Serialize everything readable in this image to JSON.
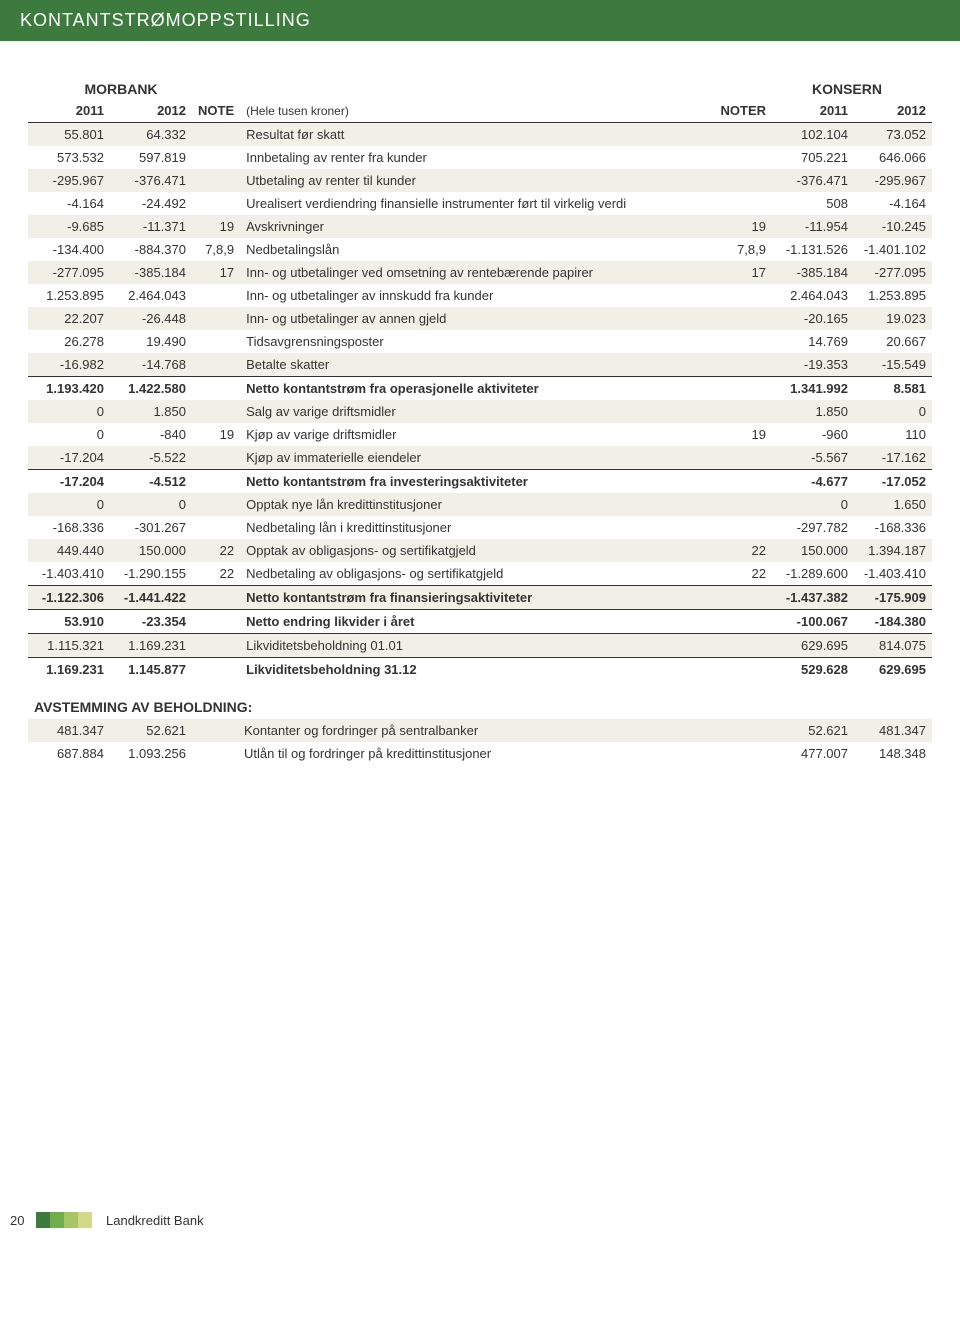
{
  "header": {
    "title": "KONTANTSTRØMOPPSTILLING"
  },
  "group_labels": {
    "left": "MORBANK",
    "right": "KONSERN"
  },
  "columns": {
    "m2011": "2011",
    "m2012": "2012",
    "mnote": "NOTE",
    "desc": "(Hele tusen kroner)",
    "noter": "NOTER",
    "k2011": "2011",
    "k2012": "2012"
  },
  "rows": [
    {
      "m2011": "55.801",
      "m2012": "64.332",
      "mnote": "",
      "desc": "Resultat før skatt",
      "noter": "",
      "k2011": "102.104",
      "k2012": "73.052",
      "alt": true
    },
    {
      "m2011": "573.532",
      "m2012": "597.819",
      "mnote": "",
      "desc": "Innbetaling av renter fra kunder",
      "noter": "",
      "k2011": "705.221",
      "k2012": "646.066"
    },
    {
      "m2011": "-295.967",
      "m2012": "-376.471",
      "mnote": "",
      "desc": "Utbetaling av renter til kunder",
      "noter": "",
      "k2011": "-376.471",
      "k2012": "-295.967",
      "alt": true
    },
    {
      "m2011": "-4.164",
      "m2012": "-24.492",
      "mnote": "",
      "desc": "Urealisert verdiendring finansielle instrumenter ført til virkelig verdi",
      "noter": "",
      "k2011": "508",
      "k2012": "-4.164"
    },
    {
      "m2011": "-9.685",
      "m2012": "-11.371",
      "mnote": "19",
      "desc": "Avskrivninger",
      "noter": "19",
      "k2011": "-11.954",
      "k2012": "-10.245",
      "alt": true
    },
    {
      "m2011": "-134.400",
      "m2012": "-884.370",
      "mnote": "7,8,9",
      "desc": "Nedbetalingslån",
      "noter": "7,8,9",
      "k2011": "-1.131.526",
      "k2012": "-1.401.102"
    },
    {
      "m2011": "-277.095",
      "m2012": "-385.184",
      "mnote": "17",
      "desc": "Inn- og utbetalinger ved omsetning av rentebærende papirer",
      "noter": "17",
      "k2011": "-385.184",
      "k2012": "-277.095",
      "alt": true
    },
    {
      "m2011": "1.253.895",
      "m2012": "2.464.043",
      "mnote": "",
      "desc": "Inn- og utbetalinger av innskudd fra kunder",
      "noter": "",
      "k2011": "2.464.043",
      "k2012": "1.253.895"
    },
    {
      "m2011": "22.207",
      "m2012": "-26.448",
      "mnote": "",
      "desc": "Inn- og utbetalinger av annen gjeld",
      "noter": "",
      "k2011": "-20.165",
      "k2012": "19.023",
      "alt": true
    },
    {
      "m2011": "26.278",
      "m2012": "19.490",
      "mnote": "",
      "desc": "Tidsavgrensningsposter",
      "noter": "",
      "k2011": "14.769",
      "k2012": "20.667"
    },
    {
      "m2011": "-16.982",
      "m2012": "-14.768",
      "mnote": "",
      "desc": "Betalte skatter",
      "noter": "",
      "k2011": "-19.353",
      "k2012": "-15.549",
      "alt": true
    },
    {
      "m2011": "1.193.420",
      "m2012": "1.422.580",
      "mnote": "",
      "desc": "Netto kontantstrøm fra operasjonelle aktiviteter",
      "noter": "",
      "k2011": "1.341.992",
      "k2012": "8.581",
      "bold": true,
      "line": true
    },
    {
      "m2011": "0",
      "m2012": "1.850",
      "mnote": "",
      "desc": "Salg av varige driftsmidler",
      "noter": "",
      "k2011": "1.850",
      "k2012": "0",
      "alt": true
    },
    {
      "m2011": "0",
      "m2012": "-840",
      "mnote": "19",
      "desc": "Kjøp av varige driftsmidler",
      "noter": "19",
      "k2011": "-960",
      "k2012": "110"
    },
    {
      "m2011": "-17.204",
      "m2012": "-5.522",
      "mnote": "",
      "desc": "Kjøp av immaterielle eiendeler",
      "noter": "",
      "k2011": "-5.567",
      "k2012": "-17.162",
      "alt": true
    },
    {
      "m2011": "-17.204",
      "m2012": "-4.512",
      "mnote": "",
      "desc": "Netto kontantstrøm fra investeringsaktiviteter",
      "noter": "",
      "k2011": "-4.677",
      "k2012": "-17.052",
      "bold": true,
      "line": true
    },
    {
      "m2011": "0",
      "m2012": "0",
      "mnote": "",
      "desc": "Opptak nye lån kredittinstitusjoner",
      "noter": "",
      "k2011": "0",
      "k2012": "1.650",
      "alt": true
    },
    {
      "m2011": "-168.336",
      "m2012": "-301.267",
      "mnote": "",
      "desc": "Nedbetaling lån i kredittinstitusjoner",
      "noter": "",
      "k2011": "-297.782",
      "k2012": "-168.336"
    },
    {
      "m2011": "449.440",
      "m2012": "150.000",
      "mnote": "22",
      "desc": "Opptak av obligasjons- og sertifikatgjeld",
      "noter": "22",
      "k2011": "150.000",
      "k2012": "1.394.187",
      "alt": true
    },
    {
      "m2011": "-1.403.410",
      "m2012": "-1.290.155",
      "mnote": "22",
      "desc": "Nedbetaling av obligasjons- og sertifikatgjeld",
      "noter": "22",
      "k2011": "-1.289.600",
      "k2012": "-1.403.410"
    },
    {
      "m2011": "-1.122.306",
      "m2012": "-1.441.422",
      "mnote": "",
      "desc": "Netto kontantstrøm fra finansieringsaktiviteter",
      "noter": "",
      "k2011": "-1.437.382",
      "k2012": "-175.909",
      "bold": true,
      "line": true,
      "alt": true
    },
    {
      "m2011": "53.910",
      "m2012": "-23.354",
      "mnote": "",
      "desc": "Netto endring likvider i året",
      "noter": "",
      "k2011": "-100.067",
      "k2012": "-184.380",
      "bold": true,
      "line": true
    },
    {
      "m2011": "1.115.321",
      "m2012": "1.169.231",
      "mnote": "",
      "desc": "Likviditetsbeholdning 01.01",
      "noter": "",
      "k2011": "629.695",
      "k2012": "814.075",
      "alt": true,
      "line": true
    },
    {
      "m2011": "1.169.231",
      "m2012": "1.145.877",
      "mnote": "",
      "desc": "Likviditetsbeholdning 31.12",
      "noter": "",
      "k2011": "529.628",
      "k2012": "629.695",
      "bold": true,
      "line": true
    }
  ],
  "section2": {
    "title": "AVSTEMMING AV BEHOLDNING:",
    "rows": [
      {
        "m2011": "481.347",
        "m2012": "52.621",
        "mnote": "",
        "desc": "Kontanter og fordringer på sentralbanker",
        "noter": "",
        "k2011": "52.621",
        "k2012": "481.347",
        "alt": true
      },
      {
        "m2011": "687.884",
        "m2012": "1.093.256",
        "mnote": "",
        "desc": "Utlån til og fordringer på kredittinstitusjoner",
        "noter": "",
        "k2011": "477.007",
        "k2012": "148.348"
      }
    ]
  },
  "footer": {
    "pagenum": "20",
    "brand": "Landkreditt Bank",
    "bar_colors": [
      "#3d7a3d",
      "#6fae4a",
      "#a7c766",
      "#d4d98a"
    ]
  }
}
